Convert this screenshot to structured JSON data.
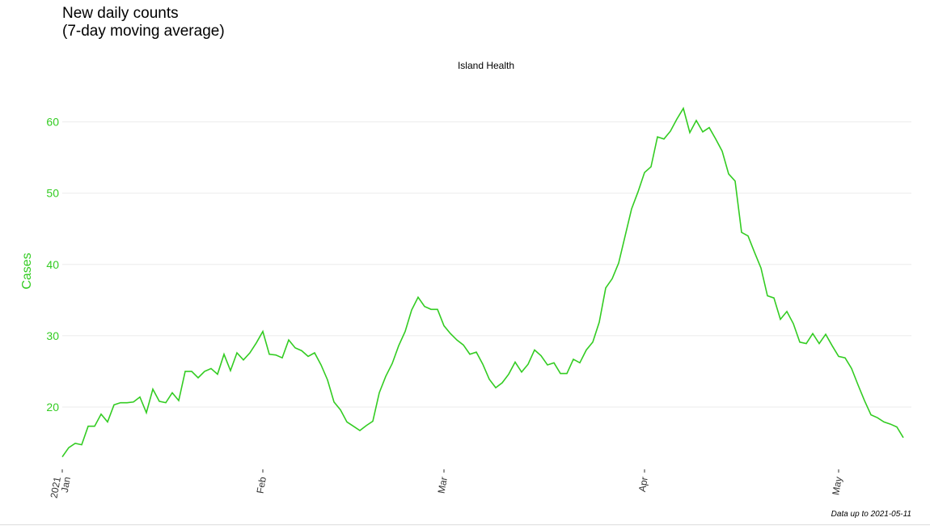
{
  "header": {
    "title_line1": "New daily counts",
    "title_line2": "(7-day moving average)"
  },
  "caption": "Data up to 2021-05-11",
  "colors": {
    "series": "#33cc22",
    "grid": "#ebebeb",
    "axis_text": "#333333"
  },
  "chart_data": {
    "type": "line",
    "title": "New daily counts (7-day moving average)",
    "subtitle": "Island Health",
    "xlabel": "",
    "ylabel": "Cases",
    "xlim": [
      "2021-01-01",
      "2021-05-11"
    ],
    "ylim": [
      12.5,
      64.5
    ],
    "grid": true,
    "legend": "none",
    "x_ticks": [
      {
        "date": "2021-01-01",
        "lines": [
          "2021",
          "Jan"
        ]
      },
      {
        "date": "2021-02-01",
        "lines": [
          "Feb"
        ]
      },
      {
        "date": "2021-03-01",
        "lines": [
          "Mar"
        ]
      },
      {
        "date": "2021-04-01",
        "lines": [
          "Apr"
        ]
      },
      {
        "date": "2021-05-01",
        "lines": [
          "May"
        ]
      }
    ],
    "y_ticks": [
      20,
      30,
      40,
      50,
      60
    ],
    "series": [
      {
        "x": [
          "2021-01-01",
          "2021-01-02",
          "2021-01-03",
          "2021-01-04",
          "2021-01-05",
          "2021-01-06",
          "2021-01-07",
          "2021-01-08",
          "2021-01-09",
          "2021-01-10",
          "2021-01-11",
          "2021-01-12",
          "2021-01-13",
          "2021-01-14",
          "2021-01-15",
          "2021-01-16",
          "2021-01-17",
          "2021-01-18",
          "2021-01-19",
          "2021-01-20",
          "2021-01-21",
          "2021-01-22",
          "2021-01-23",
          "2021-01-24",
          "2021-01-25",
          "2021-01-26",
          "2021-01-27",
          "2021-01-28",
          "2021-01-29",
          "2021-01-30",
          "2021-01-31",
          "2021-02-01",
          "2021-02-02",
          "2021-02-03",
          "2021-02-04",
          "2021-02-05",
          "2021-02-06",
          "2021-02-07",
          "2021-02-08",
          "2021-02-09",
          "2021-02-10",
          "2021-02-11",
          "2021-02-12",
          "2021-02-13",
          "2021-02-14",
          "2021-02-15",
          "2021-02-16",
          "2021-02-17",
          "2021-02-18",
          "2021-02-19",
          "2021-02-20",
          "2021-02-21",
          "2021-02-22",
          "2021-02-23",
          "2021-02-24",
          "2021-02-25",
          "2021-02-26",
          "2021-02-27",
          "2021-02-28",
          "2021-03-01",
          "2021-03-02",
          "2021-03-03",
          "2021-03-04",
          "2021-03-05",
          "2021-03-06",
          "2021-03-07",
          "2021-03-08",
          "2021-03-09",
          "2021-03-10",
          "2021-03-11",
          "2021-03-12",
          "2021-03-13",
          "2021-03-14",
          "2021-03-15",
          "2021-03-16",
          "2021-03-17",
          "2021-03-18",
          "2021-03-19",
          "2021-03-20",
          "2021-03-21",
          "2021-03-22",
          "2021-03-23",
          "2021-03-24",
          "2021-03-25",
          "2021-03-26",
          "2021-03-27",
          "2021-03-28",
          "2021-03-29",
          "2021-03-30",
          "2021-03-31",
          "2021-04-01",
          "2021-04-02",
          "2021-04-03",
          "2021-04-04",
          "2021-04-05",
          "2021-04-06",
          "2021-04-07",
          "2021-04-08",
          "2021-04-09",
          "2021-04-10",
          "2021-04-11",
          "2021-04-12",
          "2021-04-13",
          "2021-04-14",
          "2021-04-15",
          "2021-04-16",
          "2021-04-17",
          "2021-04-18",
          "2021-04-19",
          "2021-04-20",
          "2021-04-21",
          "2021-04-22",
          "2021-04-23",
          "2021-04-24",
          "2021-04-25",
          "2021-04-26",
          "2021-04-27",
          "2021-04-28",
          "2021-04-29",
          "2021-04-30",
          "2021-05-01",
          "2021-05-02",
          "2021-05-03",
          "2021-05-04",
          "2021-05-05",
          "2021-05-06",
          "2021-05-07",
          "2021-05-08",
          "2021-05-09",
          "2021-05-10",
          "2021-05-11"
        ],
        "y": [
          13.0,
          14.3,
          14.9,
          14.7,
          17.3,
          17.3,
          19.0,
          17.9,
          20.3,
          20.6,
          20.6,
          20.7,
          21.4,
          19.2,
          22.5,
          20.8,
          20.6,
          22.0,
          20.9,
          25.0,
          25.0,
          24.1,
          25.0,
          25.4,
          24.6,
          27.4,
          25.1,
          27.6,
          26.6,
          27.6,
          29.0,
          30.6,
          27.4,
          27.3,
          26.9,
          29.4,
          28.3,
          27.9,
          27.1,
          27.6,
          25.9,
          23.8,
          20.7,
          19.6,
          17.9,
          17.3,
          16.7,
          17.4,
          18.0,
          22.0,
          24.3,
          26.1,
          28.6,
          30.6,
          33.6,
          35.4,
          34.1,
          33.7,
          33.7,
          31.4,
          30.3,
          29.4,
          28.7,
          27.4,
          27.7,
          26.0,
          23.9,
          22.7,
          23.4,
          24.6,
          26.3,
          24.9,
          26.0,
          28.0,
          27.2,
          25.9,
          26.2,
          24.7,
          24.7,
          26.7,
          26.2,
          28.0,
          29.1,
          31.9,
          36.7,
          38.0,
          40.2,
          44.0,
          47.8,
          50.2,
          52.9,
          53.7,
          57.9,
          57.6,
          58.7,
          60.4,
          61.9,
          58.5,
          60.2,
          58.6,
          59.2,
          57.6,
          55.9,
          52.7,
          51.7,
          44.5,
          44.0,
          41.7,
          39.5,
          35.6,
          35.3,
          32.3,
          33.4,
          31.7,
          29.1,
          28.9,
          30.3,
          28.9,
          30.2,
          28.6,
          27.1,
          26.9,
          25.4,
          23.1,
          20.9,
          18.9,
          18.5,
          17.9,
          17.6,
          17.2,
          15.7
        ]
      }
    ]
  }
}
